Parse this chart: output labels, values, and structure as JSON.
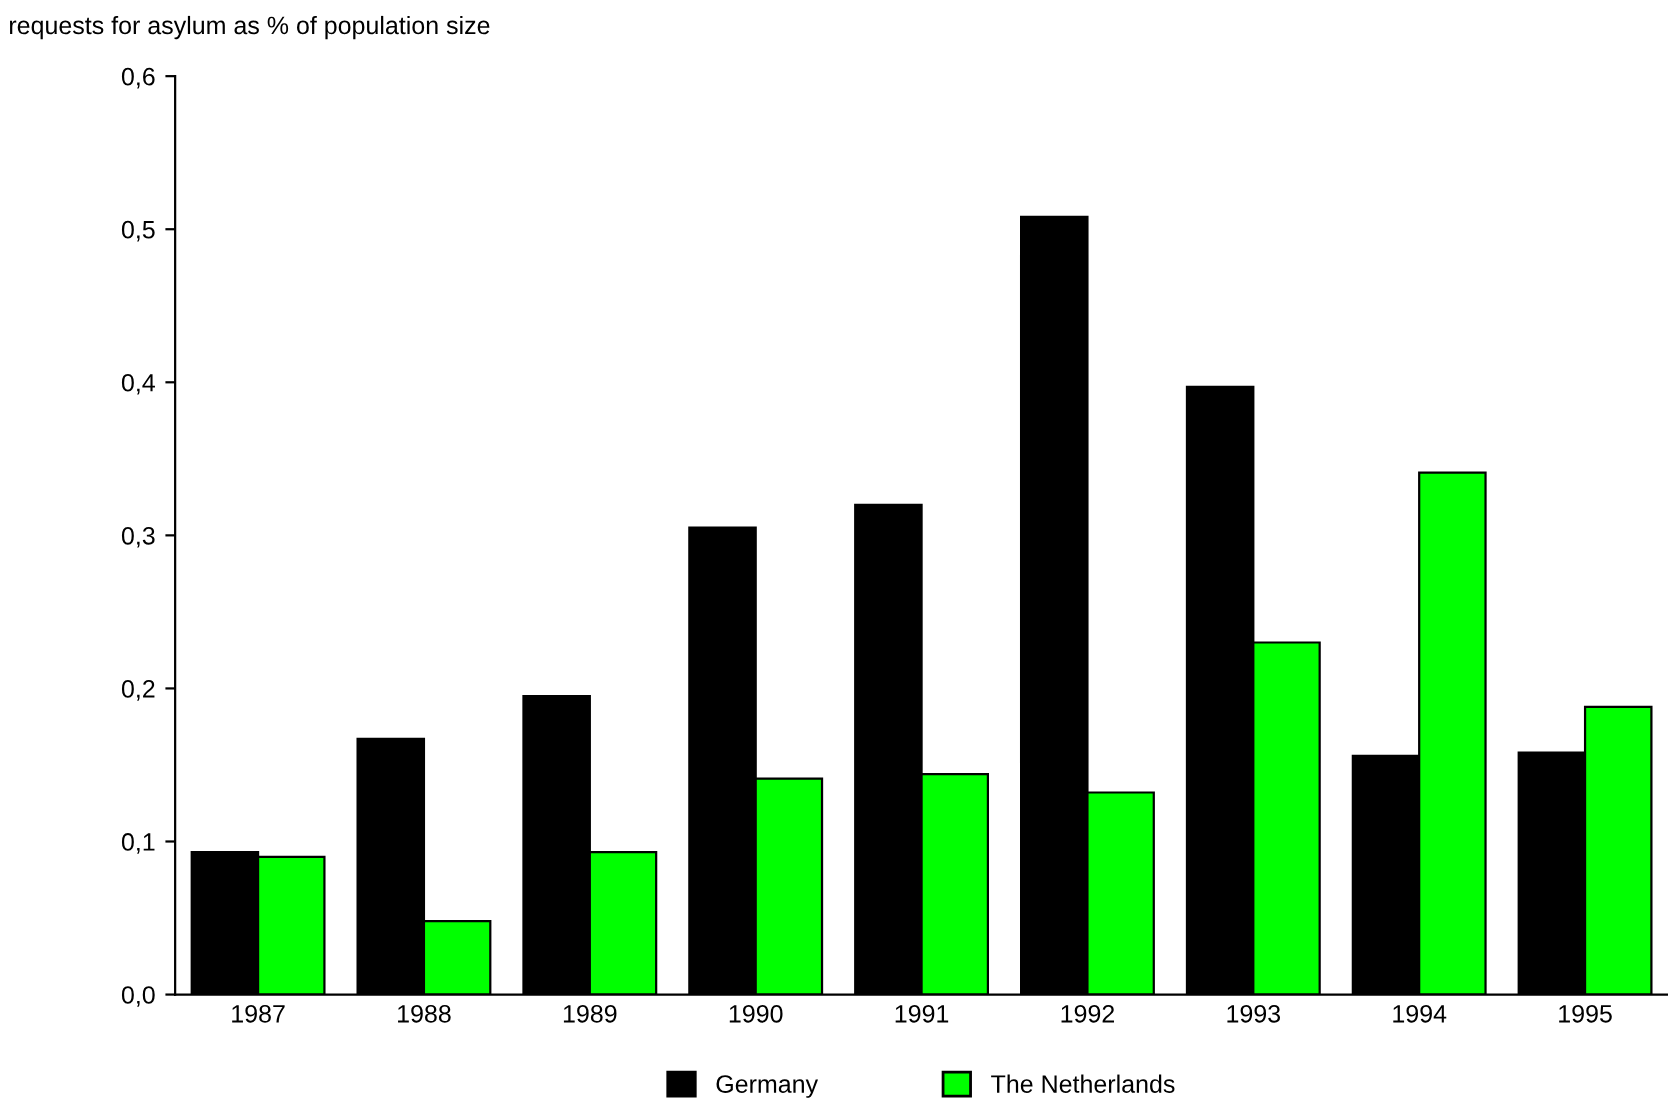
{
  "chart_data": {
    "type": "bar",
    "ylabel": "requests for asylum as % of population size",
    "categories": [
      "1987",
      "1988",
      "1989",
      "1990",
      "1991",
      "1992",
      "1993",
      "1994",
      "1995"
    ],
    "series": [
      {
        "name": "Germany",
        "color": "#000000",
        "values": [
          0.093,
          0.167,
          0.195,
          0.305,
          0.32,
          0.508,
          0.397,
          0.156,
          0.158
        ]
      },
      {
        "name": "The Netherlands",
        "color": "#00ff00",
        "values": [
          0.09,
          0.048,
          0.093,
          0.141,
          0.144,
          0.132,
          0.23,
          0.341,
          0.188
        ]
      }
    ],
    "ylim": [
      0,
      0.6
    ],
    "yticks": [
      {
        "value": 0,
        "label": "0,0"
      },
      {
        "value": 0.1,
        "label": "0,1"
      },
      {
        "value": 0.2,
        "label": "0,2"
      },
      {
        "value": 0.3,
        "label": "0,3"
      },
      {
        "value": 0.4,
        "label": "0,4"
      },
      {
        "value": 0.5,
        "label": "0,5"
      },
      {
        "value": 0.6,
        "label": "0,6"
      }
    ],
    "grid": false,
    "legend": "bottom"
  }
}
